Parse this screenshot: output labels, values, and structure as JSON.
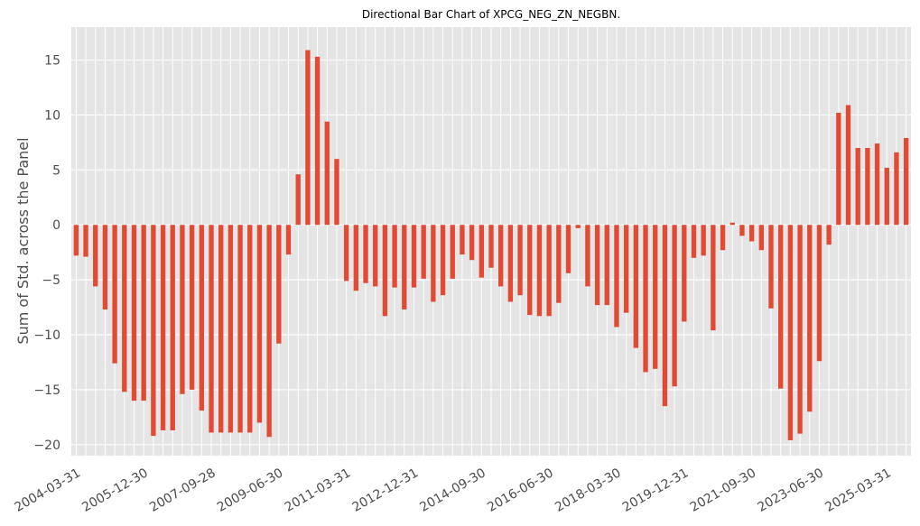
{
  "colors": {
    "background": "#ffffff",
    "plot_bg": "#e5e5e5",
    "grid": "#ffffff",
    "bar": "#e24a33",
    "text": "#4d4d4d",
    "title_text": "#000000"
  },
  "chart_data": {
    "type": "bar",
    "title": "Directional Bar Chart of XPCG_NEG_ZN_NEGBN.",
    "xlabel": "",
    "ylabel": "Sum of Std. across the Panel",
    "ylim": [
      -21,
      18
    ],
    "yticks": [
      -20,
      -15,
      -10,
      -5,
      0,
      5,
      10,
      15
    ],
    "ytick_labels": [
      "−20",
      "−15",
      "−10",
      "−5",
      "0",
      "5",
      "10",
      "15"
    ],
    "xtick_labels": [
      {
        "index": 0,
        "label": "2004-03-31"
      },
      {
        "index": 7,
        "label": "2005-12-30"
      },
      {
        "index": 14,
        "label": "2007-09-28"
      },
      {
        "index": 21,
        "label": "2009-06-30"
      },
      {
        "index": 28,
        "label": "2011-03-31"
      },
      {
        "index": 35,
        "label": "2012-12-31"
      },
      {
        "index": 42,
        "label": "2014-09-30"
      },
      {
        "index": 49,
        "label": "2016-06-30"
      },
      {
        "index": 56,
        "label": "2018-03-30"
      },
      {
        "index": 63,
        "label": "2019-12-31"
      },
      {
        "index": 70,
        "label": "2021-09-30"
      },
      {
        "index": 77,
        "label": "2023-06-30"
      },
      {
        "index": 84,
        "label": "2025-03-31"
      }
    ],
    "grid": true,
    "legend": "none",
    "start_period": "2004-03-31",
    "frequency": "quarterly",
    "values": [
      -2.8,
      -2.9,
      -5.6,
      -7.7,
      -12.6,
      -15.2,
      -16.0,
      -16.0,
      -19.2,
      -18.7,
      -18.7,
      -15.4,
      -15.0,
      -16.9,
      -18.9,
      -18.9,
      -18.9,
      -18.9,
      -18.9,
      -18.0,
      -19.3,
      -10.8,
      -2.7,
      4.6,
      15.9,
      15.3,
      9.4,
      6.0,
      -5.1,
      -6.0,
      -5.3,
      -5.6,
      -8.3,
      -5.7,
      -7.7,
      -5.7,
      -4.9,
      -7.0,
      -6.4,
      -4.9,
      -2.7,
      -3.2,
      -4.8,
      -3.9,
      -5.6,
      -7.0,
      -6.4,
      -8.2,
      -8.3,
      -8.3,
      -7.1,
      -4.4,
      -0.3,
      -5.6,
      -7.3,
      -7.3,
      -9.3,
      -8.0,
      -11.2,
      -13.4,
      -13.1,
      -16.5,
      -14.7,
      -8.8,
      -3.0,
      -2.8,
      -9.6,
      -2.3,
      0.2,
      -1.0,
      -1.5,
      -2.3,
      -7.6,
      -14.9,
      -19.6,
      -19.0,
      -17.0,
      -12.4,
      -1.8,
      10.2,
      10.9,
      7.0,
      7.0,
      7.4,
      5.2,
      6.6,
      7.9
    ]
  }
}
